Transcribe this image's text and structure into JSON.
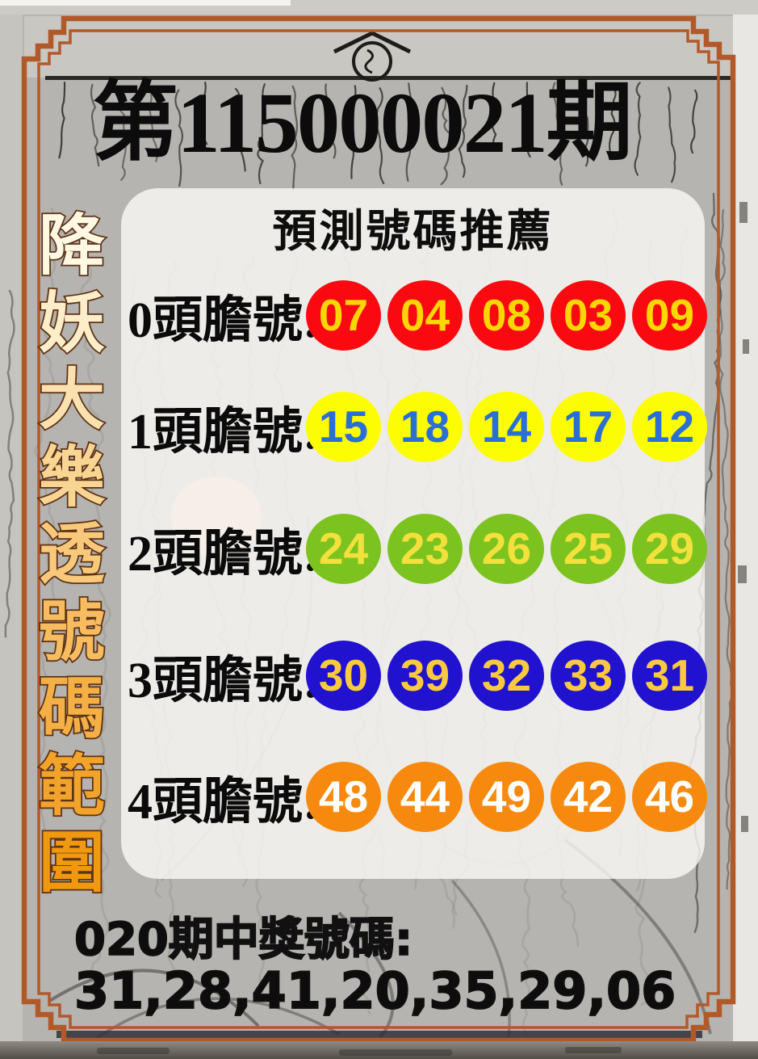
{
  "title": "第115000021期",
  "panel": {
    "subtitle": "預測號碼推薦"
  },
  "sidebar": {
    "text": "降妖大樂透號碼範圍"
  },
  "rows": [
    {
      "label": "0頭膽號:",
      "ball_color": "#fa0a10",
      "number_color": "#ffd700",
      "numbers": [
        "07",
        "04",
        "08",
        "03",
        "09"
      ]
    },
    {
      "label": "1頭膽號:",
      "ball_color": "#fdfd02",
      "number_color": "#2a6fd4",
      "numbers": [
        "15",
        "18",
        "14",
        "17",
        "12"
      ]
    },
    {
      "label": "2頭膽號:",
      "ball_color": "#7dc31f",
      "number_color": "#f2e03c",
      "numbers": [
        "24",
        "23",
        "26",
        "25",
        "29"
      ]
    },
    {
      "label": "3頭膽號:",
      "ball_color": "#2012cf",
      "number_color": "#fac93e",
      "numbers": [
        "30",
        "39",
        "32",
        "33",
        "31"
      ]
    },
    {
      "label": "4頭膽號:",
      "ball_color": "#f78a0e",
      "number_color": "#ffffff",
      "numbers": [
        "48",
        "44",
        "49",
        "42",
        "46"
      ]
    }
  ],
  "footer": {
    "line1": "020期中獎號碼:",
    "line2": "31,28,41,20,35,29,06"
  },
  "colors": {
    "frame_orange": "#b2592a",
    "ink_black": "#0c0c0c",
    "sidebar_gradient_top": "#fff9e4",
    "sidebar_gradient_bottom": "#f0980f",
    "sidebar_outline": "#5f3317",
    "panel_white": "rgba(251,250,247,0.8)"
  }
}
